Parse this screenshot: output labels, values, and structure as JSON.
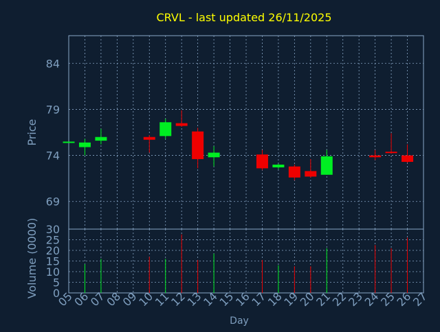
{
  "chart_data": [
    {
      "type": "candlestick",
      "title": "CRVL - last updated 26/11/2025",
      "ylabel": "Price",
      "xlabel": "",
      "ylim": [
        66,
        87
      ],
      "yticks": [
        69,
        74,
        79,
        84
      ],
      "grid": true,
      "categories": [
        "05",
        "06",
        "07",
        "08",
        "09",
        "10",
        "11",
        "12",
        "13",
        "14",
        "15",
        "16",
        "17",
        "18",
        "19",
        "20",
        "21",
        "22",
        "23",
        "24",
        "25",
        "26",
        "27"
      ],
      "candles": [
        {
          "day": "05",
          "open": 75.5,
          "close": 75.5,
          "high": 75.5,
          "low": 75.5
        },
        {
          "day": "06",
          "open": 74.9,
          "close": 75.4,
          "high": 75.8,
          "low": 74.0
        },
        {
          "day": "07",
          "open": 75.6,
          "close": 76.0,
          "high": 76.9,
          "low": 75.2
        },
        {
          "day": "10",
          "open": 76.0,
          "close": 75.7,
          "high": 76.2,
          "low": 74.3
        },
        {
          "day": "11",
          "open": 76.1,
          "close": 77.6,
          "high": 78.0,
          "low": 75.8
        },
        {
          "day": "12",
          "open": 77.5,
          "close": 77.2,
          "high": 78.9,
          "low": 77.1
        },
        {
          "day": "13",
          "open": 76.6,
          "close": 73.6,
          "high": 77.0,
          "low": 72.6
        },
        {
          "day": "14",
          "open": 73.8,
          "close": 74.3,
          "high": 75.0,
          "low": 72.8
        },
        {
          "day": "17",
          "open": 74.1,
          "close": 72.6,
          "high": 74.6,
          "low": 72.4
        },
        {
          "day": "18",
          "open": 72.7,
          "close": 73.0,
          "high": 73.1,
          "low": 72.5
        },
        {
          "day": "19",
          "open": 72.8,
          "close": 71.6,
          "high": 73.0,
          "low": 71.3
        },
        {
          "day": "20",
          "open": 72.3,
          "close": 71.7,
          "high": 73.6,
          "low": 71.6
        },
        {
          "day": "21",
          "open": 71.9,
          "close": 73.9,
          "high": 74.6,
          "low": 71.9
        },
        {
          "day": "24",
          "open": 74.0,
          "close": 73.8,
          "high": 74.6,
          "low": 73.5
        },
        {
          "day": "25",
          "open": 74.4,
          "close": 74.3,
          "high": 76.4,
          "low": 74.2
        },
        {
          "day": "26",
          "open": 74.0,
          "close": 73.3,
          "high": 75.2,
          "low": 73.2
        }
      ],
      "colors": {
        "up": "#00ee22",
        "down": "#ee0000"
      }
    },
    {
      "type": "bar",
      "ylabel": "Volume (0000)",
      "xlabel": "Day",
      "ylim": [
        0,
        30
      ],
      "yticks": [
        0,
        5,
        10,
        15,
        20,
        25,
        30
      ],
      "grid": true,
      "categories": [
        "05",
        "06",
        "07",
        "08",
        "09",
        "10",
        "11",
        "12",
        "13",
        "14",
        "15",
        "16",
        "17",
        "18",
        "19",
        "20",
        "21",
        "22",
        "23",
        "24",
        "25",
        "26",
        "27"
      ],
      "bars": [
        {
          "day": "06",
          "value": 13.5,
          "dir": "up"
        },
        {
          "day": "07",
          "value": 16.0,
          "dir": "up"
        },
        {
          "day": "10",
          "value": 17.0,
          "dir": "down"
        },
        {
          "day": "11",
          "value": 16.0,
          "dir": "up"
        },
        {
          "day": "12",
          "value": 27.5,
          "dir": "down"
        },
        {
          "day": "13",
          "value": 15.5,
          "dir": "down"
        },
        {
          "day": "14",
          "value": 18.5,
          "dir": "up"
        },
        {
          "day": "17",
          "value": 15.5,
          "dir": "down"
        },
        {
          "day": "18",
          "value": 13.0,
          "dir": "up"
        },
        {
          "day": "19",
          "value": 12.5,
          "dir": "down"
        },
        {
          "day": "20",
          "value": 12.5,
          "dir": "down"
        },
        {
          "day": "21",
          "value": 21.0,
          "dir": "up"
        },
        {
          "day": "24",
          "value": 22.5,
          "dir": "down"
        },
        {
          "day": "25",
          "value": 21.0,
          "dir": "down"
        },
        {
          "day": "26",
          "value": 26.0,
          "dir": "down"
        }
      ],
      "colors": {
        "up": "#00ee22",
        "down": "#ee0000"
      }
    }
  ],
  "style": {
    "background": "#0f1e30",
    "title_color": "#ffff00",
    "label_color": "#7f9fbf",
    "frame_color": "#8aa8c8",
    "grid_color": "#8aa8c8"
  }
}
